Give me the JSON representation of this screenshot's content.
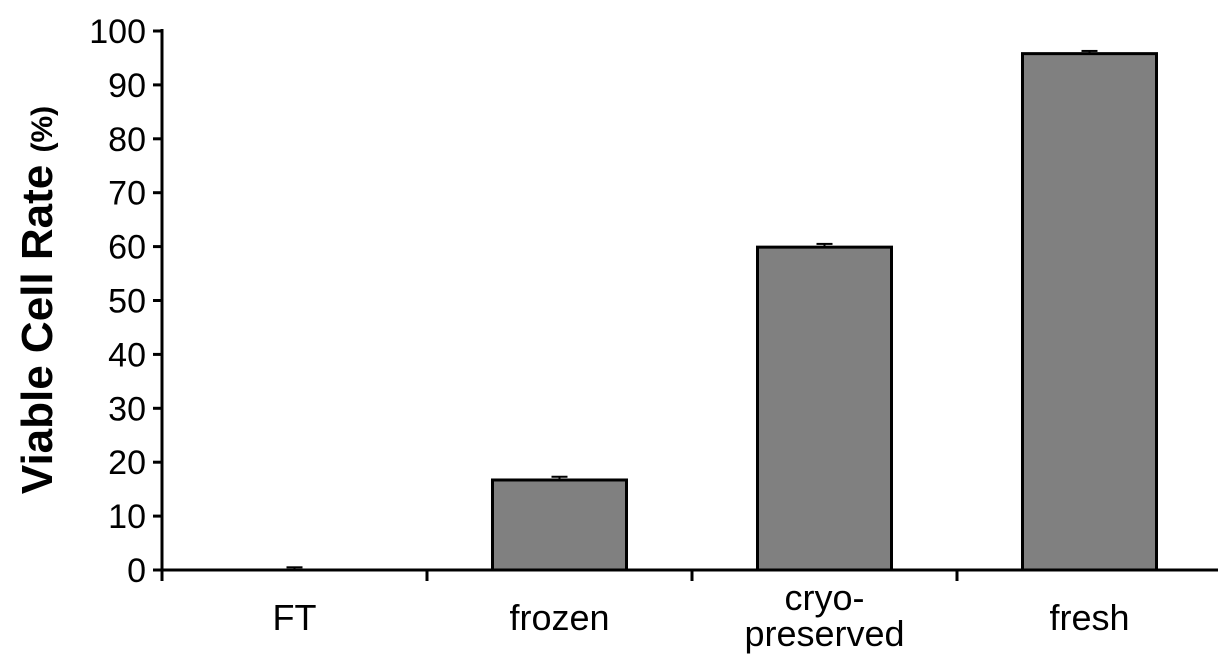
{
  "chart_data": {
    "type": "bar",
    "categories": [
      [
        "FT"
      ],
      [
        "frozen"
      ],
      [
        "cryo-",
        "preserved"
      ],
      [
        "fresh"
      ]
    ],
    "values": [
      0,
      16.7,
      59.9,
      95.8
    ],
    "errors": [
      0.5,
      0.6,
      0.6,
      0.5
    ],
    "title": "",
    "xlabel": "",
    "ylabel": "Viable Cell Rate",
    "ylabel_unit": "(%)",
    "ylim": [
      0,
      100
    ],
    "yticks": [
      0,
      10,
      20,
      30,
      40,
      50,
      60,
      70,
      80,
      90,
      100
    ],
    "grid": false,
    "legend": "none",
    "bar_color": "#808080",
    "bar_edge_color": "#000000"
  }
}
